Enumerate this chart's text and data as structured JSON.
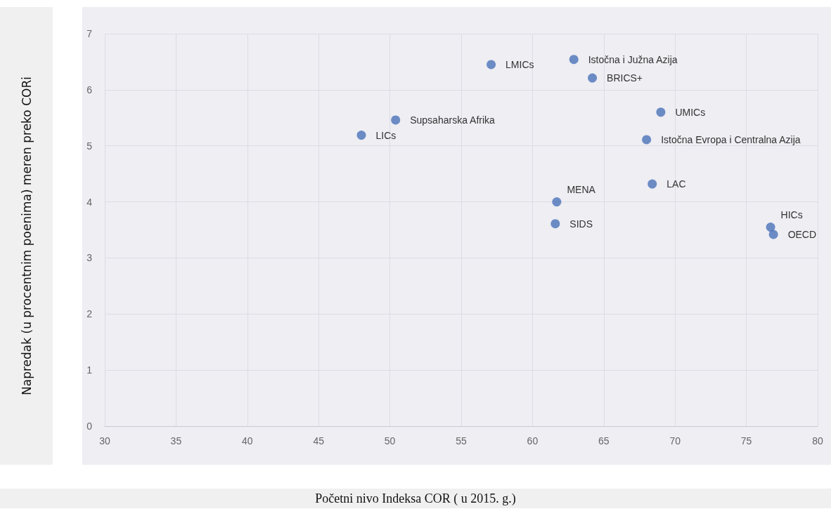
{
  "chart_data": {
    "type": "scatter",
    "xlabel": "Početni nivo Indeksa COR ( u 2015. g.)",
    "ylabel": "Napredak (u procentnim poenima) meren preko CORi",
    "x": [
      48.0,
      50.4,
      57.1,
      62.9,
      64.2,
      69.0,
      68.0,
      68.4,
      61.7,
      61.6,
      76.7,
      76.9
    ],
    "values": [
      5.19,
      5.46,
      6.45,
      6.54,
      6.21,
      5.6,
      5.11,
      4.32,
      4.0,
      3.61,
      3.55,
      3.42
    ],
    "color": "#4a72b8",
    "marker": "circle",
    "annotations": [
      {
        "text": "LICs",
        "x": 48.0,
        "y": 5.19
      },
      {
        "text": "Supsaharska Afrika",
        "x": 50.4,
        "y": 5.46
      },
      {
        "text": "LMICs",
        "x": 57.1,
        "y": 6.45
      },
      {
        "text": "Istočna i Južna Azija",
        "x": 62.9,
        "y": 6.54
      },
      {
        "text": "BRICS+",
        "x": 64.2,
        "y": 6.21
      },
      {
        "text": "UMICs",
        "x": 69.0,
        "y": 5.6
      },
      {
        "text": "Istočna Evropa i Centralna Azija",
        "x": 68.0,
        "y": 5.11
      },
      {
        "text": "LAC",
        "x": 68.4,
        "y": 4.32
      },
      {
        "text": "MENA",
        "x": 61.7,
        "y": 4.0
      },
      {
        "text": "SIDS",
        "x": 61.6,
        "y": 3.61
      },
      {
        "text": "HICs",
        "x": 76.7,
        "y": 3.55
      },
      {
        "text": "OECD",
        "x": 76.9,
        "y": 3.42
      }
    ],
    "xlim": [
      30,
      80
    ],
    "xticks": [
      30,
      35,
      40,
      45,
      50,
      55,
      60,
      65,
      70,
      75,
      80
    ],
    "ylim": [
      0,
      7
    ],
    "yticks": [
      0,
      1,
      2,
      3,
      4,
      5,
      6,
      7
    ],
    "grid": true
  }
}
